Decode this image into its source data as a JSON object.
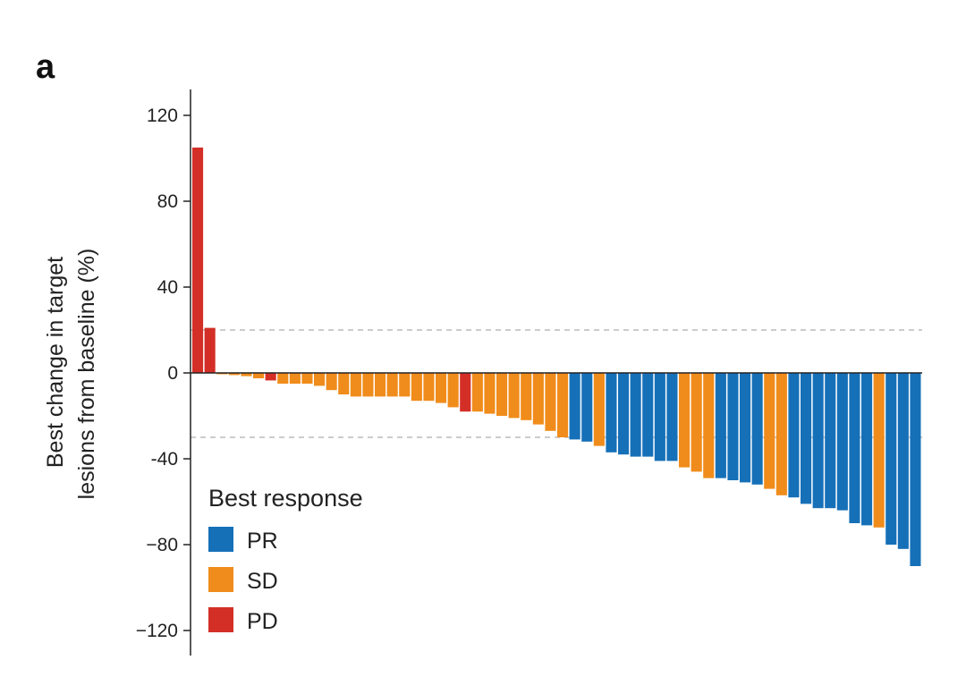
{
  "panel_label": "a",
  "colors": {
    "PR": "#1670b8",
    "SD": "#f08c1b",
    "PD": "#d32f27",
    "axis": "#222222",
    "ref_line": "#bbbbbb"
  },
  "chart_data": {
    "type": "bar",
    "title": "",
    "ylabel_lines": [
      "Best change in target",
      "lesions from baseline (%)"
    ],
    "ylim": [
      -120,
      130
    ],
    "yticks": [
      120,
      80,
      40,
      0,
      -40,
      -80,
      -120
    ],
    "ytick_labels": [
      "120",
      "80",
      "40",
      "0",
      "-40",
      "−80",
      "−120"
    ],
    "reference_lines": [
      20,
      -30
    ],
    "grid": false,
    "legend": {
      "title": "Best response",
      "placement": "bottom-left",
      "entries": [
        {
          "key": "PR",
          "label": "PR"
        },
        {
          "key": "SD",
          "label": "SD"
        },
        {
          "key": "PD",
          "label": "PD"
        }
      ]
    },
    "bars": [
      {
        "value": 105,
        "response": "PD"
      },
      {
        "value": 21,
        "response": "PD"
      },
      {
        "value": 0,
        "response": "SD"
      },
      {
        "value": -1,
        "response": "SD"
      },
      {
        "value": -1.5,
        "response": "SD"
      },
      {
        "value": -2.5,
        "response": "SD"
      },
      {
        "value": -3.5,
        "response": "PD"
      },
      {
        "value": -5,
        "response": "SD"
      },
      {
        "value": -5,
        "response": "SD"
      },
      {
        "value": -5,
        "response": "SD"
      },
      {
        "value": -6,
        "response": "SD"
      },
      {
        "value": -8,
        "response": "SD"
      },
      {
        "value": -10,
        "response": "SD"
      },
      {
        "value": -11,
        "response": "SD"
      },
      {
        "value": -11,
        "response": "SD"
      },
      {
        "value": -11,
        "response": "SD"
      },
      {
        "value": -11,
        "response": "SD"
      },
      {
        "value": -11,
        "response": "SD"
      },
      {
        "value": -13,
        "response": "SD"
      },
      {
        "value": -13,
        "response": "SD"
      },
      {
        "value": -14,
        "response": "SD"
      },
      {
        "value": -16,
        "response": "SD"
      },
      {
        "value": -18,
        "response": "PD"
      },
      {
        "value": -18,
        "response": "SD"
      },
      {
        "value": -19,
        "response": "SD"
      },
      {
        "value": -20,
        "response": "SD"
      },
      {
        "value": -21,
        "response": "SD"
      },
      {
        "value": -22,
        "response": "SD"
      },
      {
        "value": -24,
        "response": "SD"
      },
      {
        "value": -27,
        "response": "SD"
      },
      {
        "value": -30,
        "response": "SD"
      },
      {
        "value": -31,
        "response": "PR"
      },
      {
        "value": -32,
        "response": "PR"
      },
      {
        "value": -34,
        "response": "SD"
      },
      {
        "value": -37,
        "response": "PR"
      },
      {
        "value": -38,
        "response": "PR"
      },
      {
        "value": -39,
        "response": "PR"
      },
      {
        "value": -39,
        "response": "PR"
      },
      {
        "value": -41,
        "response": "PR"
      },
      {
        "value": -41,
        "response": "PR"
      },
      {
        "value": -44,
        "response": "SD"
      },
      {
        "value": -46,
        "response": "SD"
      },
      {
        "value": -49,
        "response": "SD"
      },
      {
        "value": -49,
        "response": "PR"
      },
      {
        "value": -50,
        "response": "PR"
      },
      {
        "value": -51,
        "response": "PR"
      },
      {
        "value": -52,
        "response": "PR"
      },
      {
        "value": -54,
        "response": "SD"
      },
      {
        "value": -57,
        "response": "SD"
      },
      {
        "value": -58,
        "response": "PR"
      },
      {
        "value": -61,
        "response": "PR"
      },
      {
        "value": -63,
        "response": "PR"
      },
      {
        "value": -63,
        "response": "PR"
      },
      {
        "value": -64,
        "response": "PR"
      },
      {
        "value": -70,
        "response": "PR"
      },
      {
        "value": -71,
        "response": "PR"
      },
      {
        "value": -72,
        "response": "SD"
      },
      {
        "value": -80,
        "response": "PR"
      },
      {
        "value": -82,
        "response": "PR"
      },
      {
        "value": -90,
        "response": "PR"
      }
    ]
  }
}
